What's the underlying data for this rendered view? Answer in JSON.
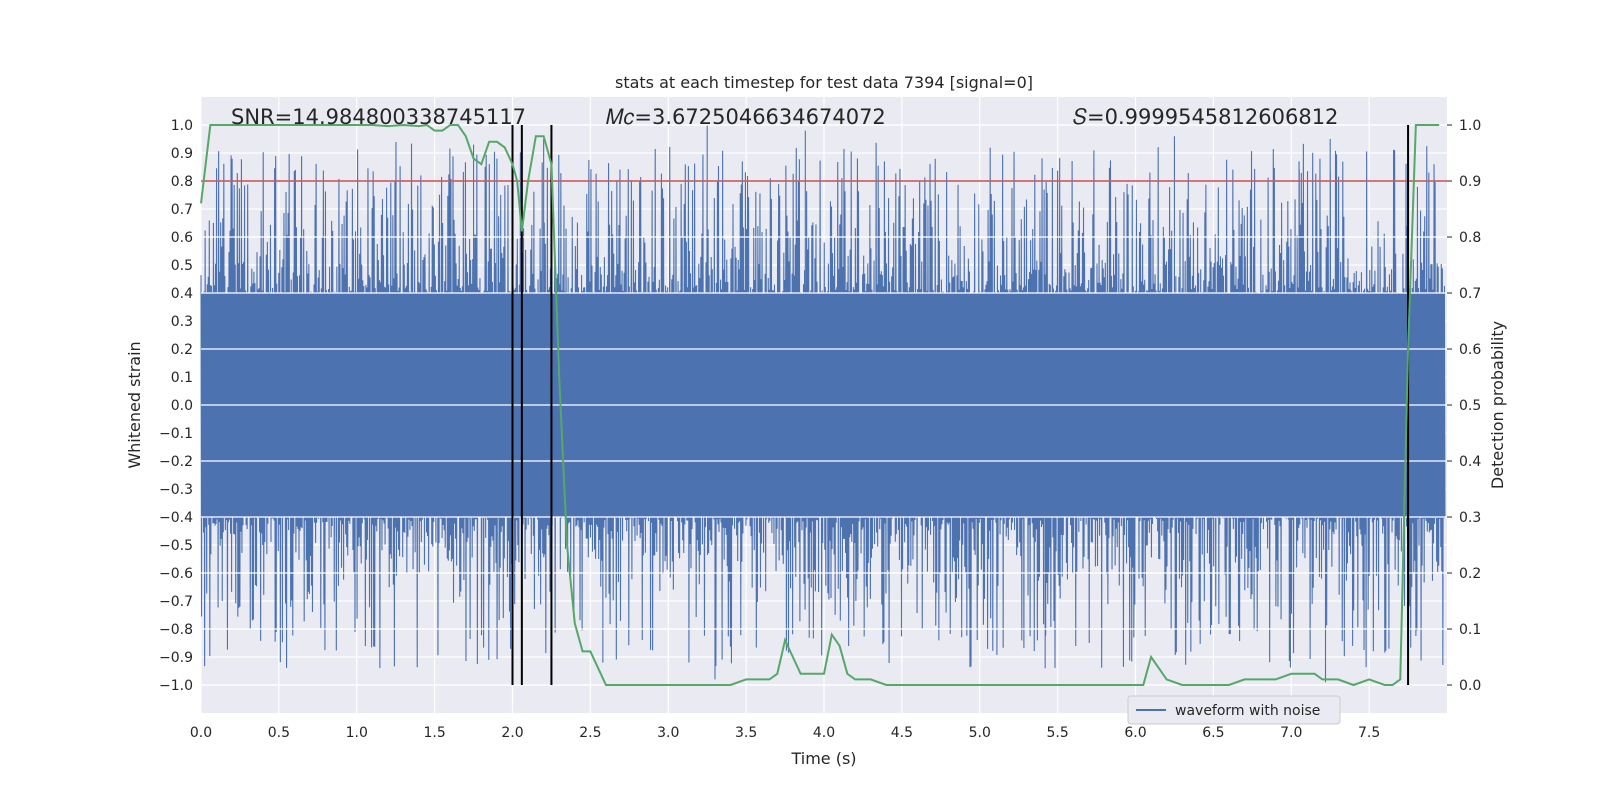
{
  "chart_data": {
    "type": "line",
    "title": "stats at each timestep for test data 7394 [signal=0]",
    "xlabel": "Time (s)",
    "ylabel_left": "Whitened strain",
    "ylabel_right": "Detection probability",
    "xlim": [
      0.0,
      8.0
    ],
    "ylim_left": [
      -1.1,
      1.1
    ],
    "ylim_right": [
      -0.05,
      1.05
    ],
    "x_ticks": [
      "0.0",
      "0.5",
      "1.0",
      "1.5",
      "2.0",
      "2.5",
      "3.0",
      "3.5",
      "4.0",
      "4.5",
      "5.0",
      "5.5",
      "6.0",
      "6.5",
      "7.0",
      "7.5"
    ],
    "y_left_ticks": [
      "1.0",
      "0.9",
      "0.8",
      "0.7",
      "0.6",
      "0.5",
      "0.4",
      "0.3",
      "0.2",
      "0.1",
      "0.0",
      "−0.1",
      "−0.2",
      "−0.3",
      "−0.4",
      "−0.5",
      "−0.6",
      "−0.7",
      "−0.8",
      "−0.9",
      "−1.0"
    ],
    "y_right_ticks": [
      "1.0",
      "0.9",
      "0.8",
      "0.7",
      "0.6",
      "0.5",
      "0.4",
      "0.3",
      "0.2",
      "0.1",
      "0.0"
    ],
    "threshold": {
      "axis": "right",
      "value": 0.9,
      "color": "#c44e52"
    },
    "vertical_markers": [
      2.0,
      2.06,
      2.25,
      7.75
    ],
    "annotations": {
      "snr": "SNR=14.984800338745117",
      "mc": "𝑀𝑐=3.6725046634674072",
      "s": "𝑆=0.9999545812606812"
    },
    "series": [
      {
        "name": "waveform with noise",
        "color": "#4c72b0",
        "kind": "noise",
        "core_amplitude": 0.4,
        "peak_amplitude": 1.0,
        "notable_spikes": [
          {
            "x": 1.75,
            "y": 0.93
          },
          {
            "x": 1.9,
            "y": 0.88
          },
          {
            "x": 2.2,
            "y": 0.95
          },
          {
            "x": 3.25,
            "y": 1.0
          },
          {
            "x": 3.88,
            "y": 0.98
          },
          {
            "x": 6.25,
            "y": 0.96
          },
          {
            "x": 7.05,
            "y": 0.87
          },
          {
            "x": 7.25,
            "y": 0.95
          },
          {
            "x": 2.58,
            "y": -0.92
          },
          {
            "x": 3.3,
            "y": -0.98
          },
          {
            "x": 5.42,
            "y": -0.94
          },
          {
            "x": 7.22,
            "y": -0.99
          }
        ]
      },
      {
        "name": "detection probability",
        "color": "#55a868",
        "axis": "right",
        "x": [
          0.0,
          0.06,
          0.12,
          0.2,
          0.3,
          0.4,
          0.5,
          0.6,
          0.7,
          0.8,
          0.9,
          1.0,
          1.1,
          1.2,
          1.3,
          1.4,
          1.45,
          1.5,
          1.55,
          1.6,
          1.65,
          1.7,
          1.75,
          1.8,
          1.85,
          1.9,
          1.95,
          2.0,
          2.03,
          2.06,
          2.1,
          2.15,
          2.2,
          2.25,
          2.3,
          2.35,
          2.4,
          2.45,
          2.5,
          2.55,
          2.6,
          2.7,
          2.8,
          3.0,
          3.2,
          3.3,
          3.4,
          3.5,
          3.6,
          3.65,
          3.7,
          3.75,
          3.8,
          3.85,
          3.9,
          3.95,
          4.0,
          4.05,
          4.1,
          4.15,
          4.2,
          4.3,
          4.4,
          4.5,
          4.8,
          5.0,
          5.1,
          5.2,
          5.5,
          5.7,
          5.85,
          5.95,
          6.0,
          6.05,
          6.1,
          6.15,
          6.2,
          6.3,
          6.5,
          6.6,
          6.7,
          6.9,
          7.0,
          7.1,
          7.15,
          7.2,
          7.3,
          7.4,
          7.5,
          7.6,
          7.65,
          7.7,
          7.75,
          7.8,
          7.85,
          7.9,
          7.95
        ],
        "y": [
          0.86,
          1.0,
          1.0,
          1.0,
          1.0,
          1.0,
          1.0,
          1.0,
          1.0,
          1.0,
          1.0,
          1.0,
          1.0,
          0.998,
          1.0,
          0.998,
          1.0,
          0.99,
          0.99,
          1.0,
          1.0,
          0.98,
          0.94,
          0.93,
          0.97,
          0.97,
          0.96,
          0.93,
          0.9,
          0.81,
          0.9,
          0.98,
          0.98,
          0.93,
          0.55,
          0.25,
          0.11,
          0.06,
          0.06,
          0.03,
          0.0,
          0.0,
          0.0,
          0.0,
          0.0,
          0.0,
          0.0,
          0.01,
          0.01,
          0.01,
          0.02,
          0.08,
          0.05,
          0.02,
          0.02,
          0.02,
          0.02,
          0.09,
          0.07,
          0.02,
          0.01,
          0.01,
          0.0,
          0.0,
          0.0,
          0.0,
          0.0,
          0.0,
          0.0,
          0.0,
          0.0,
          0.0,
          0.0,
          0.0,
          0.05,
          0.03,
          0.01,
          0.0,
          0.0,
          0.0,
          0.01,
          0.01,
          0.02,
          0.02,
          0.02,
          0.01,
          0.01,
          0.0,
          0.01,
          0.0,
          0.0,
          0.01,
          0.6,
          1.0,
          1.0,
          1.0,
          1.0
        ]
      }
    ],
    "legend": {
      "placement": "bottom-center",
      "label": "waveform with noise"
    }
  }
}
